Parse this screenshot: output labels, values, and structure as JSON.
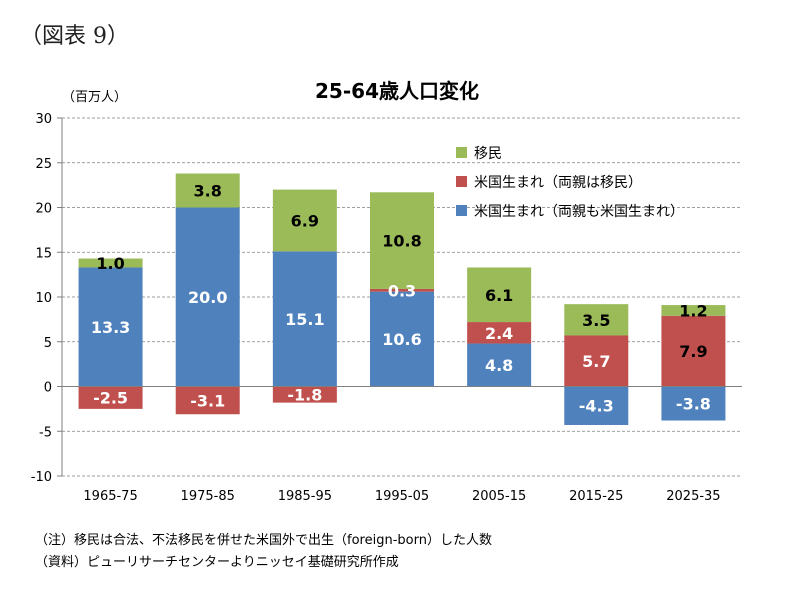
{
  "figure_label": "（図表 9）",
  "notes": {
    "note1": "（注）移民は合法、不法移民を併せた米国外で出生（foreign-born）した人数",
    "note2": "（資料）ピューリサーチセンターよりニッセイ基礎研究所作成"
  },
  "chart_data": {
    "type": "bar",
    "stacked": true,
    "title": "25-64歳人口変化",
    "unit_label": "（百万人）",
    "xlabel": "",
    "ylabel": "",
    "ylim": [
      -10,
      30
    ],
    "yticks": [
      -10,
      -5,
      0,
      5,
      10,
      15,
      20,
      25,
      30
    ],
    "grid": true,
    "legend_position": "top-right",
    "categories": [
      "1965-75",
      "1975-85",
      "1985-95",
      "1995-05",
      "2005-15",
      "2015-25",
      "2025-35"
    ],
    "series": [
      {
        "name": "米国生まれ（両親も米国生まれ）",
        "color": "#4f81bd",
        "values": [
          13.3,
          20.0,
          15.1,
          10.6,
          4.8,
          -4.3,
          -3.8
        ]
      },
      {
        "name": "米国生まれ（両親は移民）",
        "color": "#c0504d",
        "values": [
          -2.5,
          -3.1,
          -1.8,
          0.3,
          2.4,
          5.7,
          7.9
        ]
      },
      {
        "name": "移民",
        "color": "#9bbb59",
        "values": [
          1.0,
          3.8,
          6.9,
          10.8,
          6.1,
          3.5,
          1.2
        ]
      }
    ],
    "data_labels": [
      [
        "13.3",
        "20.0",
        "15.1",
        "10.6",
        "4.8",
        "-4.3",
        "-3.8"
      ],
      [
        "-2.5",
        "-3.1",
        "-1.8",
        "0.3",
        "2.4",
        "5.7",
        "7.9"
      ],
      [
        "1.0",
        "3.8",
        "6.9",
        "10.8",
        "6.1",
        "3.5",
        "1.2"
      ]
    ],
    "data_label_colors": [
      [
        "#ffffff",
        "#ffffff",
        "#ffffff",
        "#ffffff",
        "#ffffff",
        "#ffffff",
        "#ffffff"
      ],
      [
        "#ffffff",
        "#ffffff",
        "#ffffff",
        "#ffffff",
        "#ffffff",
        "#ffffff",
        "#000000"
      ],
      [
        "#000000",
        "#000000",
        "#000000",
        "#000000",
        "#000000",
        "#000000",
        "#000000"
      ]
    ]
  }
}
